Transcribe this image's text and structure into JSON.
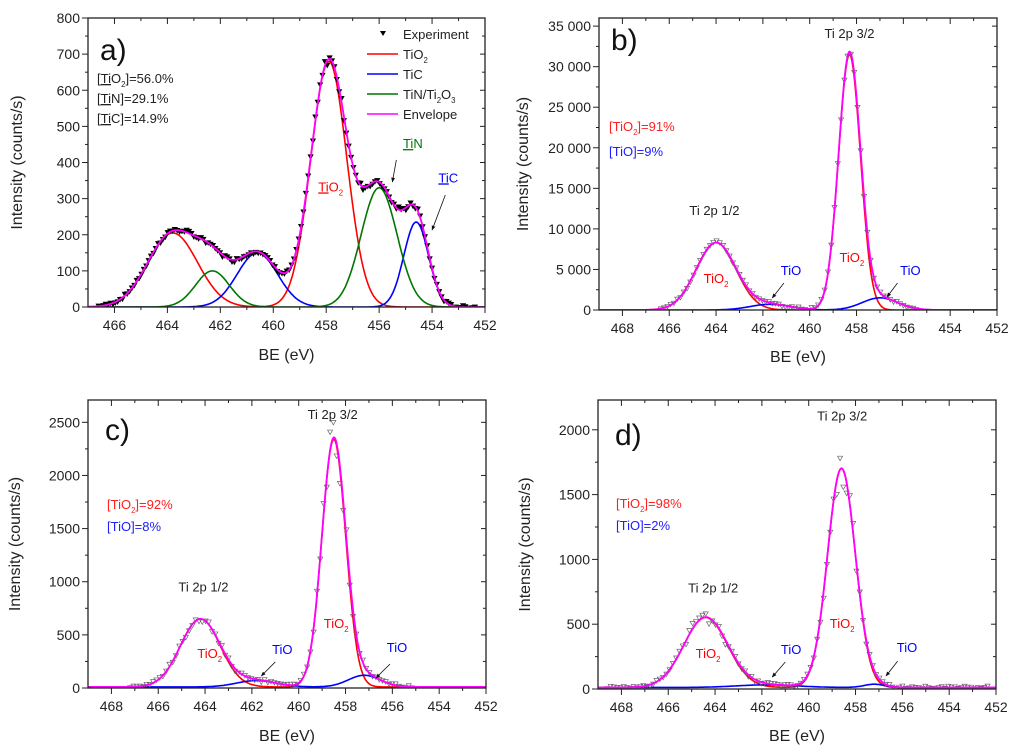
{
  "chart_data": [
    {
      "id": "a",
      "type": "line",
      "panel_label": "a)",
      "xlabel": "BE (eV)",
      "ylabel": "Intensity (counts/s)",
      "xlim": [
        467,
        452
      ],
      "ylim": [
        0,
        800
      ],
      "xticks": [
        466,
        464,
        462,
        460,
        458,
        456,
        454,
        452
      ],
      "yticks": [
        0,
        100,
        200,
        300,
        400,
        500,
        600,
        700,
        800
      ],
      "yticks_labels": [
        "0",
        "100",
        "200",
        "300",
        "400",
        "500",
        "600",
        "700",
        "800"
      ],
      "marker": "filled-down-triangle",
      "legend": {
        "placement": "top-right",
        "entries": [
          {
            "label": "Experiment",
            "color": "#000000",
            "kind": "marker"
          },
          {
            "label": "TiO",
            "sub": "2",
            "color": "#ff0000",
            "kind": "line"
          },
          {
            "label": "TiC",
            "color": "#0000ff",
            "kind": "line"
          },
          {
            "label": "TiN/Ti",
            "sub": "2",
            "label2": "O",
            "sub2": "3",
            "color": "#007700",
            "kind": "line"
          },
          {
            "label": "Envelope",
            "color": "#ff00ff",
            "kind": "line"
          }
        ]
      },
      "series": [
        {
          "name": "TiO2",
          "color": "#ff0000",
          "peaks": [
            {
              "center": 457.9,
              "height": 680,
              "fwhm": 1.6
            },
            {
              "center": 463.8,
              "height": 205,
              "fwhm": 2.2
            }
          ]
        },
        {
          "name": "TiC",
          "color": "#0000ff",
          "peaks": [
            {
              "center": 454.6,
              "height": 235,
              "fwhm": 1.1
            },
            {
              "center": 460.6,
              "height": 150,
              "fwhm": 1.8
            }
          ]
        },
        {
          "name": "TiN/Ti2O3",
          "color": "#007700",
          "peaks": [
            {
              "center": 456.0,
              "height": 330,
              "fwhm": 1.6
            },
            {
              "center": 462.3,
              "height": 100,
              "fwhm": 1.5
            }
          ]
        }
      ],
      "baseline": 0,
      "envelope_color": "#ff00ff",
      "concentrations": [
        {
          "color": "#222222",
          "parts": [
            [
              "[",
              ""
            ],
            [
              "Ti",
              "u"
            ],
            [
              "O",
              ""
            ],
            [
              "2",
              "sub"
            ],
            [
              "]=56.0%",
              ""
            ]
          ]
        },
        {
          "color": "#222222",
          "parts": [
            [
              "[",
              ""
            ],
            [
              "Ti",
              "u"
            ],
            [
              "N]=29.1%",
              ""
            ]
          ]
        },
        {
          "color": "#222222",
          "parts": [
            [
              "[",
              ""
            ],
            [
              "Ti",
              "u"
            ],
            [
              "C]=14.9%",
              ""
            ]
          ]
        }
      ],
      "annotations": [
        {
          "parts": [
            [
              "Ti",
              "u"
            ],
            [
              "O",
              ""
            ],
            [
              "2",
              "sub"
            ]
          ],
          "color": "#ff0000",
          "x": 458.3,
          "y": 320,
          "anchor": "start"
        },
        {
          "parts": [
            [
              "Ti",
              "u"
            ],
            [
              "N",
              ""
            ]
          ],
          "color": "#007700",
          "x": 455.1,
          "y": 440,
          "anchor": "start",
          "arrow": [
            455.35,
            407,
            455.5,
            346
          ]
        },
        {
          "parts": [
            [
              "Ti",
              "u"
            ],
            [
              "C",
              ""
            ]
          ],
          "color": "#0000ff",
          "x": 453.76,
          "y": 345,
          "anchor": "start",
          "arrow": [
            453.5,
            310,
            454.0,
            213
          ]
        }
      ]
    },
    {
      "id": "b",
      "type": "line",
      "panel_label": "b)",
      "xlabel": "BE (eV)",
      "ylabel": "Intensity (counts/s)",
      "xlim": [
        469,
        452
      ],
      "ylim": [
        0,
        36000
      ],
      "xticks": [
        468,
        466,
        464,
        462,
        460,
        458,
        456,
        454,
        452
      ],
      "yticks": [
        0,
        5000,
        10000,
        15000,
        20000,
        25000,
        30000,
        35000
      ],
      "yticks_labels": [
        "0",
        "5 000",
        "10 000",
        "15 000",
        "20 000",
        "25 000",
        "30 000",
        "35 000"
      ],
      "marker": "open-down-triangle",
      "series": [
        {
          "name": "TiO2",
          "color": "#ff0000",
          "peaks": [
            {
              "center": 458.3,
              "height": 31500,
              "fwhm": 1.1
            },
            {
              "center": 464.0,
              "height": 8300,
              "fwhm": 2.0
            }
          ]
        },
        {
          "name": "TiO",
          "color": "#0000ff",
          "peaks": [
            {
              "center": 457.0,
              "height": 1500,
              "fwhm": 1.8
            },
            {
              "center": 461.7,
              "height": 700,
              "fwhm": 2.0
            }
          ]
        }
      ],
      "baseline": 0,
      "envelope_color": "#ff00ff",
      "concentrations": [
        {
          "color": "#ff2020",
          "parts": [
            [
              "[TiO",
              ""
            ],
            [
              "2",
              "sub"
            ],
            [
              "]=91%",
              ""
            ]
          ]
        },
        {
          "color": "#2020ff",
          "parts": [
            [
              "[TiO]=9%",
              ""
            ]
          ]
        }
      ],
      "annotations": [
        {
          "parts": [
            [
              "Ti 2p 3/2",
              ""
            ]
          ],
          "color": "#222222",
          "x": 458.3,
          "y": 33520,
          "anchor": "middle"
        },
        {
          "parts": [
            [
              "Ti 2p 1/2",
              ""
            ]
          ],
          "color": "#222222",
          "x": 464.07,
          "y": 11700,
          "anchor": "middle"
        },
        {
          "parts": [
            [
              "TiO",
              ""
            ],
            [
              "2",
              "sub"
            ]
          ],
          "color": "#ff0000",
          "x": 464.0,
          "y": 3330,
          "anchor": "middle"
        },
        {
          "parts": [
            [
              "TiO",
              ""
            ]
          ],
          "color": "#0000ff",
          "x": 460.8,
          "y": 4300,
          "anchor": "middle",
          "arrow": [
            461.1,
            3330,
            461.6,
            1480
          ]
        },
        {
          "parts": [
            [
              "TiO",
              ""
            ],
            [
              "2",
              "sub"
            ]
          ],
          "color": "#ff0000",
          "x": 458.2,
          "y": 5900,
          "anchor": "middle"
        },
        {
          "parts": [
            [
              "TiO",
              ""
            ]
          ],
          "color": "#0000ff",
          "x": 455.7,
          "y": 4300,
          "anchor": "middle",
          "arrow": [
            456.25,
            3330,
            456.7,
            1600
          ]
        }
      ]
    },
    {
      "id": "c",
      "type": "line",
      "panel_label": "c)",
      "xlabel": "BE  (eV)",
      "ylabel": "Intensity (counts/s)",
      "xlim": [
        469,
        452
      ],
      "ylim": [
        0,
        2710
      ],
      "xticks": [
        468,
        466,
        464,
        462,
        460,
        458,
        456,
        454,
        452
      ],
      "yticks": [
        0,
        500,
        1000,
        1500,
        2000,
        2500
      ],
      "yticks_labels": [
        "0",
        "500",
        "1000",
        "1500",
        "2000",
        "2500"
      ],
      "marker": "open-down-triangle",
      "series": [
        {
          "name": "TiO2",
          "color": "#ff0000",
          "peaks": [
            {
              "center": 458.5,
              "height": 2330,
              "fwhm": 1.2
            },
            {
              "center": 464.2,
              "height": 640,
              "fwhm": 2.0
            }
          ]
        },
        {
          "name": "TiO",
          "color": "#0000ff",
          "peaks": [
            {
              "center": 457.2,
              "height": 110,
              "fwhm": 1.6
            },
            {
              "center": 461.8,
              "height": 60,
              "fwhm": 2.0
            }
          ]
        }
      ],
      "baseline": 10,
      "envelope_color": "#ff00ff",
      "concentrations": [
        {
          "color": "#ff2020",
          "parts": [
            [
              "[TiO",
              ""
            ],
            [
              "2",
              "sub"
            ],
            [
              "]=92%",
              ""
            ]
          ]
        },
        {
          "color": "#2020ff",
          "parts": [
            [
              "[TiO]=8%",
              ""
            ]
          ]
        }
      ],
      "annotations": [
        {
          "parts": [
            [
              "Ti 2p 3/2",
              ""
            ]
          ],
          "color": "#222222",
          "x": 458.55,
          "y": 2530,
          "anchor": "middle"
        },
        {
          "parts": [
            [
              "Ti 2p 1/2",
              ""
            ]
          ],
          "color": "#222222",
          "x": 464.07,
          "y": 906,
          "anchor": "middle"
        },
        {
          "parts": [
            [
              "TiO",
              ""
            ],
            [
              "2",
              "sub"
            ]
          ],
          "color": "#ff0000",
          "x": 463.8,
          "y": 283,
          "anchor": "middle"
        },
        {
          "parts": [
            [
              "TiO",
              ""
            ]
          ],
          "color": "#0000ff",
          "x": 460.7,
          "y": 320,
          "anchor": "middle",
          "arrow": [
            461.0,
            245,
            461.6,
            113
          ]
        },
        {
          "parts": [
            [
              "TiO",
              ""
            ],
            [
              "2",
              "sub"
            ]
          ],
          "color": "#ff0000",
          "x": 458.4,
          "y": 566,
          "anchor": "middle"
        },
        {
          "parts": [
            [
              "TiO",
              ""
            ]
          ],
          "color": "#0000ff",
          "x": 455.8,
          "y": 340,
          "anchor": "middle",
          "arrow": [
            456.1,
            226,
            456.7,
            94
          ]
        }
      ]
    },
    {
      "id": "d",
      "type": "line",
      "panel_label": "d)",
      "xlabel": "BE (eV)",
      "ylabel": "Intensity (counts/s)",
      "xlim": [
        469,
        452
      ],
      "ylim": [
        0,
        2230
      ],
      "xticks": [
        468,
        466,
        464,
        462,
        460,
        458,
        456,
        454,
        452
      ],
      "yticks": [
        0,
        500,
        1000,
        1500,
        2000
      ],
      "yticks_labels": [
        "0",
        "500",
        "1000",
        "1500",
        "2000"
      ],
      "marker": "open-down-triangle",
      "series": [
        {
          "name": "TiO2",
          "color": "#ff0000",
          "peaks": [
            {
              "center": 458.6,
              "height": 1690,
              "fwhm": 1.4
            },
            {
              "center": 464.4,
              "height": 540,
              "fwhm": 2.2
            }
          ]
        },
        {
          "name": "TiO",
          "color": "#0000ff",
          "peaks": [
            {
              "center": 457.2,
              "height": 25,
              "fwhm": 1.0
            },
            {
              "center": 461.8,
              "height": 20,
              "fwhm": 3.0
            }
          ]
        }
      ],
      "baseline": 12,
      "envelope_color": "#ff00ff",
      "concentrations": [
        {
          "color": "#ff2020",
          "parts": [
            [
              "[TiO",
              ""
            ],
            [
              "2",
              "sub"
            ],
            [
              "]=98%",
              ""
            ]
          ]
        },
        {
          "color": "#2020ff",
          "parts": [
            [
              "[TiO]=2%",
              ""
            ]
          ]
        }
      ],
      "annotations": [
        {
          "parts": [
            [
              "Ti 2p 3/2",
              ""
            ]
          ],
          "color": "#222222",
          "x": 458.57,
          "y": 2070,
          "anchor": "middle"
        },
        {
          "parts": [
            [
              "Ti 2p 1/2",
              ""
            ]
          ],
          "color": "#222222",
          "x": 464.08,
          "y": 746,
          "anchor": "middle"
        },
        {
          "parts": [
            [
              "TiO",
              ""
            ],
            [
              "2",
              "sub"
            ]
          ],
          "color": "#ff0000",
          "x": 464.3,
          "y": 238,
          "anchor": "middle"
        },
        {
          "parts": [
            [
              "TiO",
              ""
            ]
          ],
          "color": "#0000ff",
          "x": 460.75,
          "y": 270,
          "anchor": "middle",
          "arrow": [
            461.0,
            208,
            461.56,
            92
          ]
        },
        {
          "parts": [
            [
              "TiO",
              ""
            ],
            [
              "2",
              "sub"
            ]
          ],
          "color": "#ff0000",
          "x": 458.57,
          "y": 470,
          "anchor": "middle"
        },
        {
          "parts": [
            [
              "TiO",
              ""
            ]
          ],
          "color": "#0000ff",
          "x": 455.8,
          "y": 285,
          "anchor": "middle",
          "arrow": [
            456.2,
            215,
            456.7,
            100
          ]
        }
      ]
    }
  ]
}
